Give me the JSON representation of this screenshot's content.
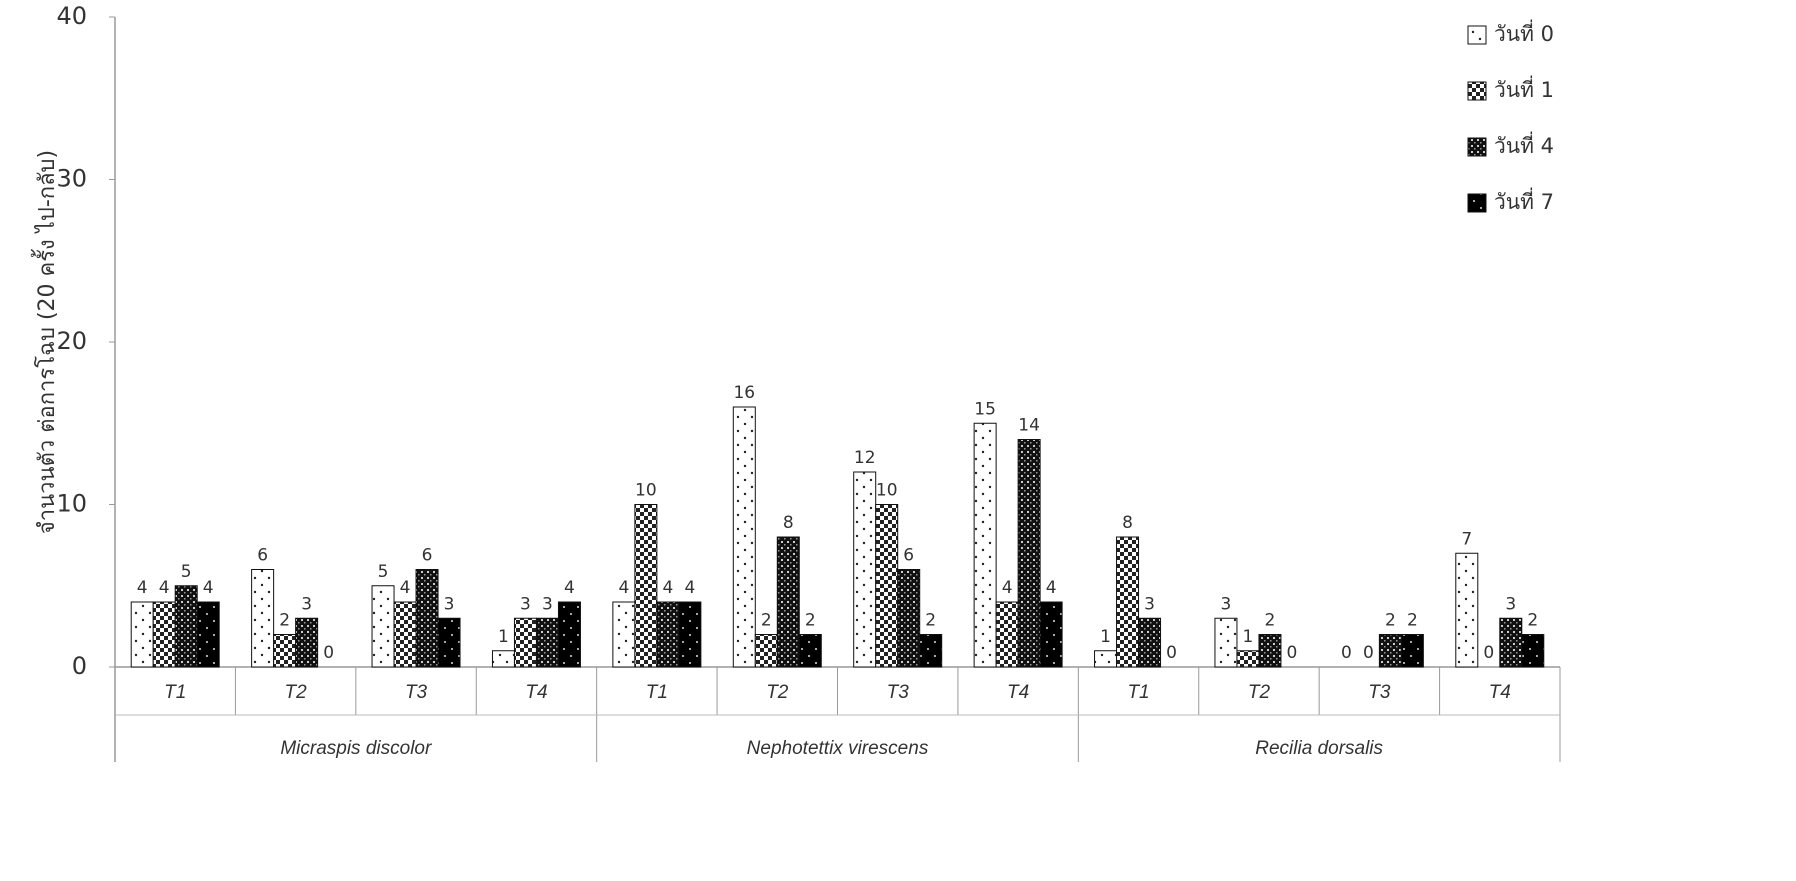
{
  "chart_data": {
    "type": "bar",
    "y_label": "จำนวนตัว ต่อการโฉบ (20 ครั้ง ไป-กลับ)",
    "categories": [
      "T1",
      "T2",
      "T3",
      "T4",
      "T1",
      "T2",
      "T3",
      "T4",
      "T1",
      "T2",
      "T3",
      "T4"
    ],
    "groups": [
      "Micraspis discolor",
      "Nephotettix virescens",
      "Recilia dorsalis"
    ],
    "series": [
      {
        "name": "วันที่ 0",
        "values": [
          4,
          6,
          5,
          1,
          4,
          16,
          12,
          15,
          1,
          3,
          0,
          7
        ]
      },
      {
        "name": "วันที่ 1",
        "values": [
          4,
          2,
          4,
          3,
          10,
          2,
          10,
          4,
          8,
          1,
          0,
          0
        ]
      },
      {
        "name": "วันที่ 4",
        "values": [
          5,
          3,
          6,
          3,
          4,
          8,
          6,
          14,
          3,
          2,
          2,
          3
        ]
      },
      {
        "name": "วันที่ 7",
        "values": [
          4,
          0,
          3,
          4,
          4,
          2,
          2,
          4,
          0,
          0,
          2,
          2
        ]
      }
    ],
    "ylim": [
      0,
      40
    ],
    "yticks": [
      0,
      10,
      20,
      30,
      40
    ],
    "legend": "top-right"
  }
}
